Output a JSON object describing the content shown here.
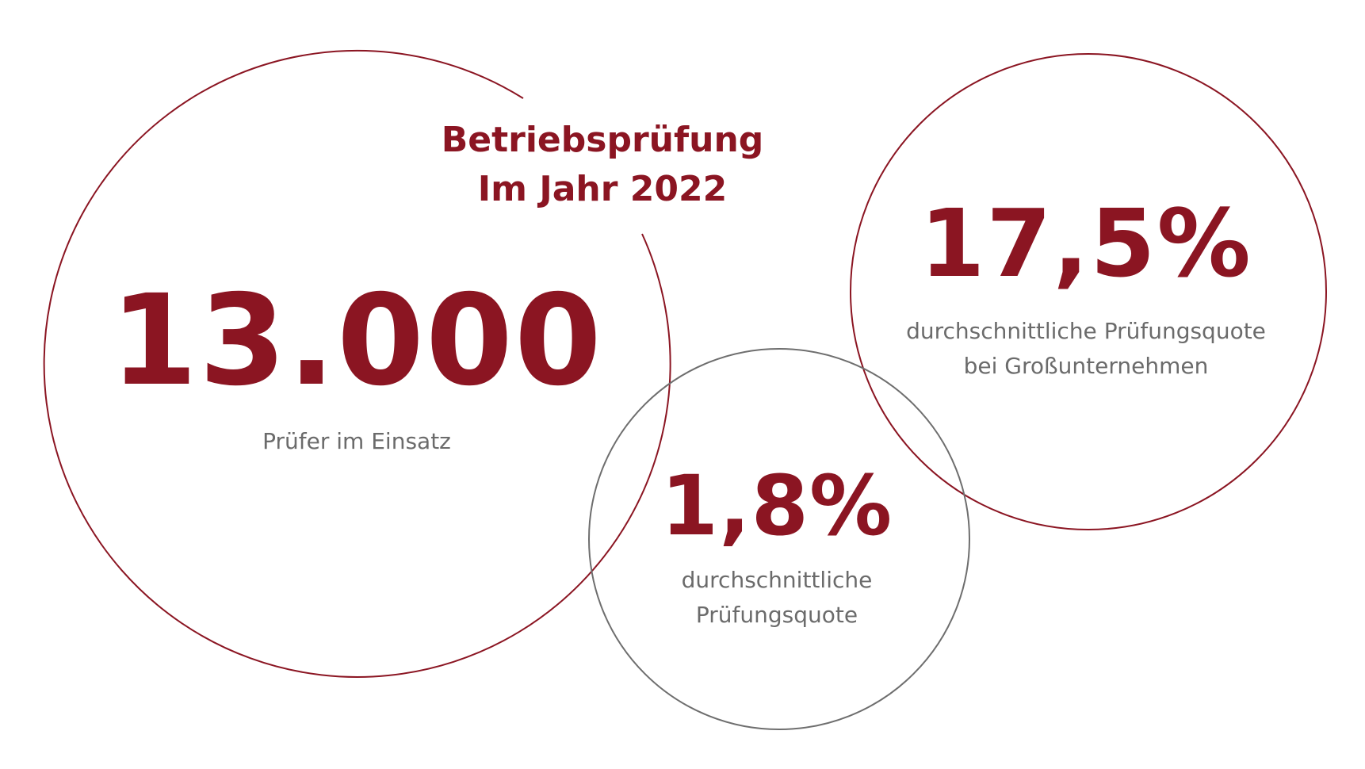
{
  "title": {
    "line1": "Betriebsprüfung",
    "line2": "Im Jahr 2022"
  },
  "stats": {
    "pruefer": {
      "value": "13.000",
      "label": "Prüfer im Einsatz"
    },
    "quote_gross": {
      "value": "17,5%",
      "label_line1": "durchschnittliche Prüfungsquote",
      "label_line2": "bei Großunternehmen"
    },
    "quote": {
      "value": "1,8%",
      "label_line1": "durchschnittliche",
      "label_line2": "Prüfungsquote"
    }
  },
  "colors": {
    "accent": "#8b1522",
    "gray_circle": "#6e6e6e",
    "label_text": "#6b6b6b"
  }
}
